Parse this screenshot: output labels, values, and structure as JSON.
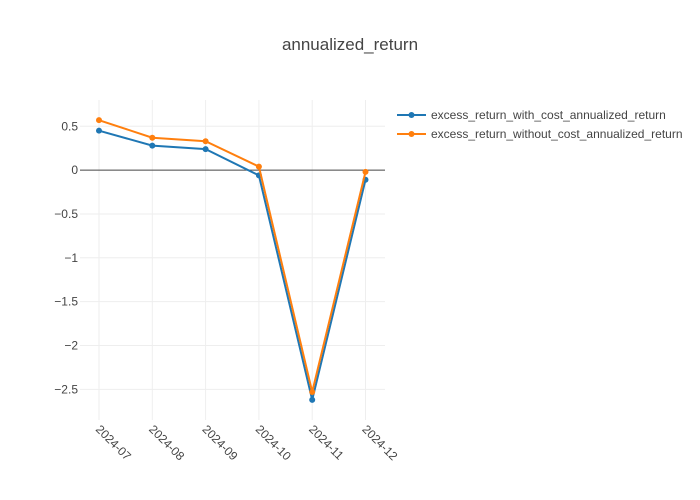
{
  "chart_data": {
    "type": "line",
    "title": "annualized_return",
    "xlabel": "",
    "ylabel": "",
    "x": [
      "2024-07",
      "2024-08",
      "2024-09",
      "2024-10",
      "2024-11",
      "2024-12"
    ],
    "ylim": [
      -2.85,
      0.8
    ],
    "yticks": [
      0.5,
      0,
      -0.5,
      -1,
      -1.5,
      -2,
      -2.5
    ],
    "ytick_labels": [
      "0.5",
      "0",
      "−0.5",
      "−1",
      "−1.5",
      "−2",
      "−2.5"
    ],
    "grid": true,
    "legend_position": "top-right",
    "series": [
      {
        "name": "excess_return_with_cost_annualized_return",
        "color": "#1f77b4",
        "values": [
          0.45,
          0.28,
          0.24,
          -0.06,
          -2.62,
          -0.11
        ]
      },
      {
        "name": "excess_return_without_cost_annualized_return",
        "color": "#ff7f0e",
        "values": [
          0.57,
          0.37,
          0.33,
          0.04,
          -2.53,
          -0.02
        ]
      }
    ]
  }
}
